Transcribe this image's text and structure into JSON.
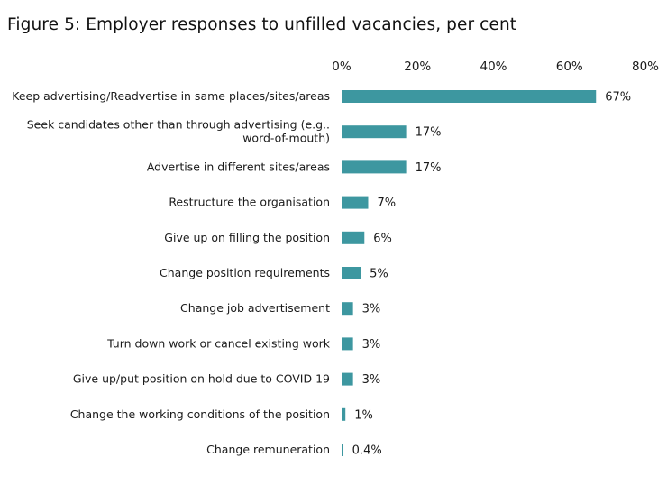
{
  "title": "Figure 5: Employer responses to unfilled vacancies, per cent",
  "chart_data": {
    "type": "bar",
    "orientation": "horizontal",
    "title": "Figure 5: Employer responses to unfilled vacancies, per cent",
    "xlabel": "",
    "ylabel": "",
    "xlim": [
      0,
      80
    ],
    "x_ticks": [
      0,
      20,
      40,
      60,
      80
    ],
    "x_tick_labels": [
      "0%",
      "20%",
      "40%",
      "60%",
      "80%"
    ],
    "x_axis_position": "top",
    "grid": false,
    "bar_color": "#3d97a0",
    "categories": [
      [
        "Keep advertising/Readvertise in same places/sites/areas"
      ],
      [
        "Seek candidates other than through advertising (e.g..",
        "word-of-mouth)"
      ],
      [
        "Advertise in different sites/areas"
      ],
      [
        "Restructure the organisation"
      ],
      [
        "Give up on filling the position"
      ],
      [
        "Change position requirements"
      ],
      [
        "Change job advertisement"
      ],
      [
        "Turn down work or cancel existing work"
      ],
      [
        "Give up/put position on hold due to COVID 19"
      ],
      [
        "Change the working conditions of the position"
      ],
      [
        "Change remuneration"
      ]
    ],
    "values": [
      67,
      17,
      17,
      7,
      6,
      5,
      3,
      3,
      3,
      1,
      0.4
    ],
    "value_labels": [
      "67%",
      "17%",
      "17%",
      "7%",
      "6%",
      "5%",
      "3%",
      "3%",
      "3%",
      "1%",
      "0.4%"
    ]
  }
}
